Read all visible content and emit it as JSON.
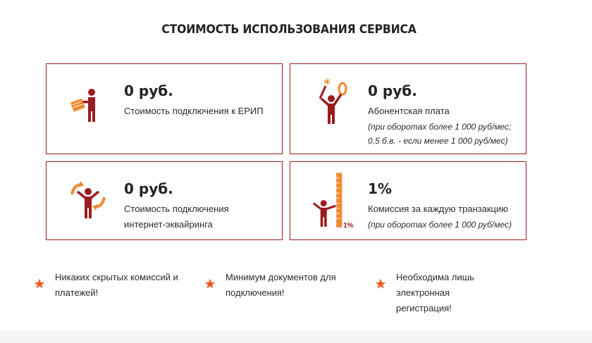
{
  "section": {
    "title": "СТОИМОСТЬ ИСПОЛЬЗОВАНИЯ СЕРВИСА"
  },
  "cards": [
    {
      "price": "0 руб.",
      "description": "Стоимость подключения к ЕРИП",
      "note_line1": "",
      "note_line2": "",
      "icon": "person-with-paper-icon"
    },
    {
      "price": "0 руб.",
      "description": "Абонентская плата",
      "note_line1": "(при оборотах более 1 000 руб/мес;",
      "note_line2": "0,5 б.в. - если менее 1 000 руб/мес)",
      "icon": "person-holding-zero-icon"
    },
    {
      "price": "0 руб.",
      "description_line1": "Стоимость подключения",
      "description_line2": "интернет-эквайринга",
      "icon": "person-with-arrows-icon"
    },
    {
      "price": "1%",
      "description": "Комиссия за каждую транзакцию",
      "note_line1": "(при оборотах более 1 000 руб/мес)",
      "icon": "person-with-ruler-icon",
      "icon_label": "1%"
    }
  ],
  "features": [
    {
      "line1": "Никаких скрытых комиссий и",
      "line2": "платежей!",
      "icon": "star-icon"
    },
    {
      "line1": "Минимум документов для",
      "line2": "подключения!",
      "icon": "star-icon"
    },
    {
      "line1": "Необходима лишь электронная",
      "line2": "регистрация!",
      "icon": "star-icon"
    }
  ],
  "colors": {
    "accent_dark_red": "#9b1c1f",
    "accent_orange": "#f08a32",
    "star_orange": "#f05a22"
  }
}
